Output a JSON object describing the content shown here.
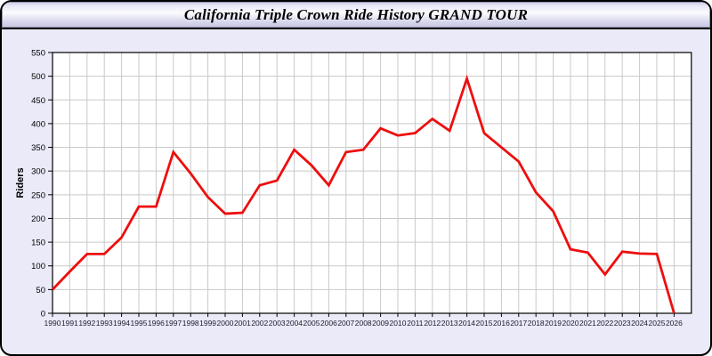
{
  "header": {
    "title": "California Triple Crown Ride History GRAND TOUR"
  },
  "colors": {
    "line": "#ee0e0e",
    "window_background": "#eaeaf8",
    "plot_background": "#ffffff",
    "gridline": "#c9c9c9",
    "axis": "#000000",
    "x_label_color": "#1b1b30",
    "y_label_color": "#000000"
  },
  "chart_data": {
    "type": "line",
    "title": "California Triple Crown Ride History GRAND TOUR",
    "xlabel": "",
    "ylabel": "Riders",
    "x": [
      1990,
      1991,
      1992,
      1993,
      1994,
      1995,
      1996,
      1997,
      1998,
      1999,
      2000,
      2001,
      2002,
      2003,
      2004,
      2005,
      2006,
      2007,
      2008,
      2009,
      2010,
      2011,
      2012,
      2013,
      2014,
      2015,
      2016,
      2017,
      2018,
      2019,
      2020,
      2021,
      2022,
      2023,
      2024,
      2025,
      2026
    ],
    "values": [
      50,
      88,
      125,
      125,
      160,
      225,
      225,
      340,
      295,
      245,
      210,
      212,
      270,
      280,
      345,
      312,
      270,
      340,
      345,
      390,
      375,
      380,
      410,
      385,
      495,
      380,
      350,
      320,
      255,
      215,
      135,
      128,
      82,
      130,
      126,
      125,
      0
    ],
    "ylim": [
      0,
      550
    ],
    "ytick_step": 50,
    "grid": true,
    "legend": "none",
    "line_color": "#ee0e0e"
  }
}
